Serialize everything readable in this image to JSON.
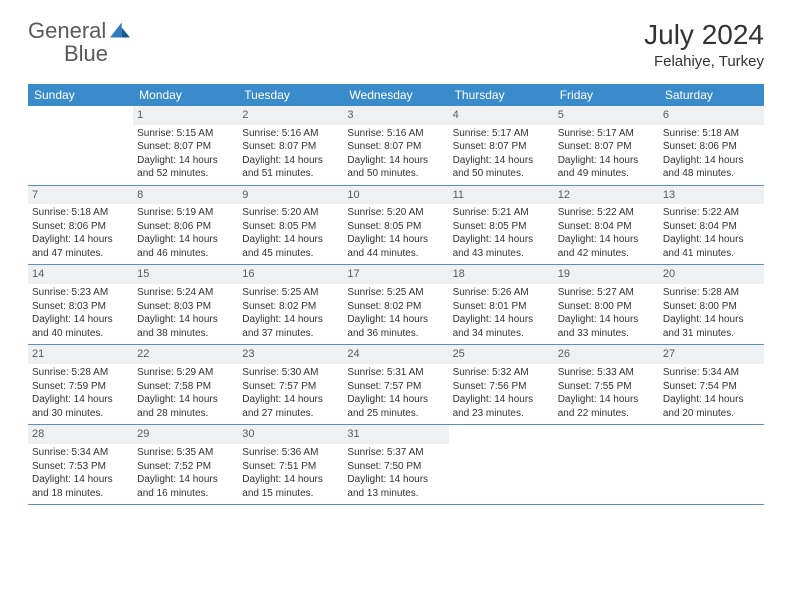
{
  "brand": {
    "name1": "General",
    "name2": "Blue"
  },
  "title": "July 2024",
  "location": "Felahiye, Turkey",
  "colors": {
    "header_bg": "#3a8bc9",
    "header_text": "#ffffff",
    "daynum_bg": "#eef0f2",
    "row_border": "#5a8fb8",
    "body_text": "#333333",
    "logo_gray": "#5a5a5a",
    "logo_blue": "#2f7bbf"
  },
  "weekdays": [
    "Sunday",
    "Monday",
    "Tuesday",
    "Wednesday",
    "Thursday",
    "Friday",
    "Saturday"
  ],
  "layout": {
    "first_weekday_index": 1,
    "days_in_month": 31,
    "rows": 5,
    "cols": 7
  },
  "days": [
    {
      "n": 1,
      "sr": "5:15 AM",
      "ss": "8:07 PM",
      "dl": "14 hours and 52 minutes."
    },
    {
      "n": 2,
      "sr": "5:16 AM",
      "ss": "8:07 PM",
      "dl": "14 hours and 51 minutes."
    },
    {
      "n": 3,
      "sr": "5:16 AM",
      "ss": "8:07 PM",
      "dl": "14 hours and 50 minutes."
    },
    {
      "n": 4,
      "sr": "5:17 AM",
      "ss": "8:07 PM",
      "dl": "14 hours and 50 minutes."
    },
    {
      "n": 5,
      "sr": "5:17 AM",
      "ss": "8:07 PM",
      "dl": "14 hours and 49 minutes."
    },
    {
      "n": 6,
      "sr": "5:18 AM",
      "ss": "8:06 PM",
      "dl": "14 hours and 48 minutes."
    },
    {
      "n": 7,
      "sr": "5:18 AM",
      "ss": "8:06 PM",
      "dl": "14 hours and 47 minutes."
    },
    {
      "n": 8,
      "sr": "5:19 AM",
      "ss": "8:06 PM",
      "dl": "14 hours and 46 minutes."
    },
    {
      "n": 9,
      "sr": "5:20 AM",
      "ss": "8:05 PM",
      "dl": "14 hours and 45 minutes."
    },
    {
      "n": 10,
      "sr": "5:20 AM",
      "ss": "8:05 PM",
      "dl": "14 hours and 44 minutes."
    },
    {
      "n": 11,
      "sr": "5:21 AM",
      "ss": "8:05 PM",
      "dl": "14 hours and 43 minutes."
    },
    {
      "n": 12,
      "sr": "5:22 AM",
      "ss": "8:04 PM",
      "dl": "14 hours and 42 minutes."
    },
    {
      "n": 13,
      "sr": "5:22 AM",
      "ss": "8:04 PM",
      "dl": "14 hours and 41 minutes."
    },
    {
      "n": 14,
      "sr": "5:23 AM",
      "ss": "8:03 PM",
      "dl": "14 hours and 40 minutes."
    },
    {
      "n": 15,
      "sr": "5:24 AM",
      "ss": "8:03 PM",
      "dl": "14 hours and 38 minutes."
    },
    {
      "n": 16,
      "sr": "5:25 AM",
      "ss": "8:02 PM",
      "dl": "14 hours and 37 minutes."
    },
    {
      "n": 17,
      "sr": "5:25 AM",
      "ss": "8:02 PM",
      "dl": "14 hours and 36 minutes."
    },
    {
      "n": 18,
      "sr": "5:26 AM",
      "ss": "8:01 PM",
      "dl": "14 hours and 34 minutes."
    },
    {
      "n": 19,
      "sr": "5:27 AM",
      "ss": "8:00 PM",
      "dl": "14 hours and 33 minutes."
    },
    {
      "n": 20,
      "sr": "5:28 AM",
      "ss": "8:00 PM",
      "dl": "14 hours and 31 minutes."
    },
    {
      "n": 21,
      "sr": "5:28 AM",
      "ss": "7:59 PM",
      "dl": "14 hours and 30 minutes."
    },
    {
      "n": 22,
      "sr": "5:29 AM",
      "ss": "7:58 PM",
      "dl": "14 hours and 28 minutes."
    },
    {
      "n": 23,
      "sr": "5:30 AM",
      "ss": "7:57 PM",
      "dl": "14 hours and 27 minutes."
    },
    {
      "n": 24,
      "sr": "5:31 AM",
      "ss": "7:57 PM",
      "dl": "14 hours and 25 minutes."
    },
    {
      "n": 25,
      "sr": "5:32 AM",
      "ss": "7:56 PM",
      "dl": "14 hours and 23 minutes."
    },
    {
      "n": 26,
      "sr": "5:33 AM",
      "ss": "7:55 PM",
      "dl": "14 hours and 22 minutes."
    },
    {
      "n": 27,
      "sr": "5:34 AM",
      "ss": "7:54 PM",
      "dl": "14 hours and 20 minutes."
    },
    {
      "n": 28,
      "sr": "5:34 AM",
      "ss": "7:53 PM",
      "dl": "14 hours and 18 minutes."
    },
    {
      "n": 29,
      "sr": "5:35 AM",
      "ss": "7:52 PM",
      "dl": "14 hours and 16 minutes."
    },
    {
      "n": 30,
      "sr": "5:36 AM",
      "ss": "7:51 PM",
      "dl": "14 hours and 15 minutes."
    },
    {
      "n": 31,
      "sr": "5:37 AM",
      "ss": "7:50 PM",
      "dl": "14 hours and 13 minutes."
    }
  ],
  "labels": {
    "sunrise": "Sunrise:",
    "sunset": "Sunset:",
    "daylight": "Daylight:"
  }
}
